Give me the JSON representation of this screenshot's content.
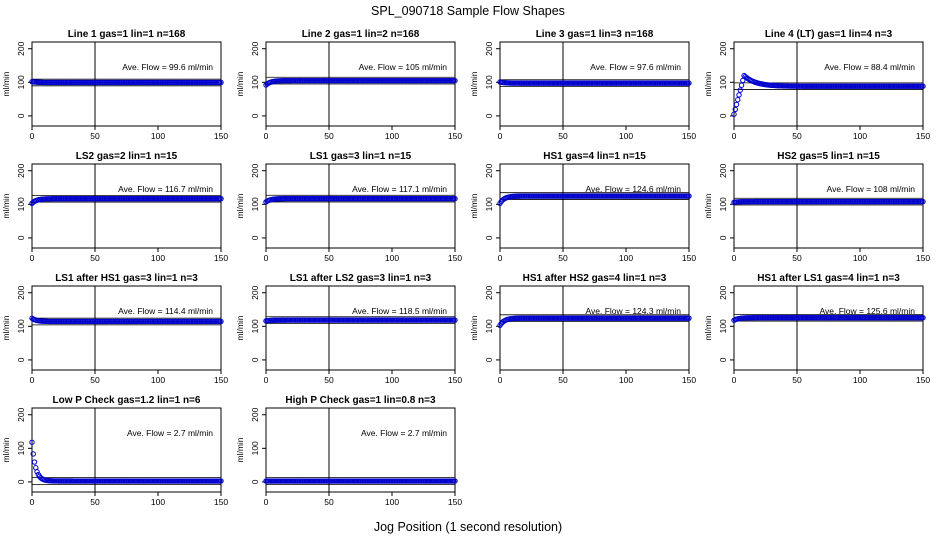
{
  "figure": {
    "title": "SPL_090718  Sample Flow Shapes",
    "xlabel": "Jog Position (1 second resolution)"
  },
  "chart_data": [
    {
      "type": "scatter",
      "title": "Line 1 gas=1 lin=1 n=168",
      "ylabel": "ml/min",
      "annotation": "Ave. Flow =  99.6  ml/min",
      "mean": 99.6,
      "xlim": [
        0,
        150
      ],
      "ylim": [
        -30,
        220
      ],
      "xticks": [
        0,
        50,
        100,
        150
      ],
      "yticks": [
        0,
        100,
        200
      ],
      "vline_x": 50,
      "shape": {
        "start": 102,
        "end": 99.6,
        "peak": null
      }
    },
    {
      "type": "scatter",
      "title": "Line 2 gas=1 lin=2 n=168",
      "ylabel": "ml/min",
      "annotation": "Ave. Flow =  105  ml/min",
      "mean": 105,
      "xlim": [
        0,
        150
      ],
      "ylim": [
        -30,
        220
      ],
      "xticks": [
        0,
        50,
        100,
        150
      ],
      "yticks": [
        0,
        100,
        200
      ],
      "vline_x": 50,
      "shape": {
        "start": 92,
        "end": 105,
        "peak": null
      }
    },
    {
      "type": "scatter",
      "title": "Line 3 gas=1 lin=3 n=168",
      "ylabel": "ml/min",
      "annotation": "Ave. Flow =  97.6  ml/min",
      "mean": 97.6,
      "xlim": [
        0,
        150
      ],
      "ylim": [
        -30,
        220
      ],
      "xticks": [
        0,
        50,
        100,
        150
      ],
      "yticks": [
        0,
        100,
        200
      ],
      "vline_x": 50,
      "shape": {
        "start": 101,
        "end": 97.6,
        "peak": null
      }
    },
    {
      "type": "scatter",
      "title": "Line 4 (LT) gas=1 lin=4 n=3",
      "ylabel": "ml/min",
      "annotation": "Ave. Flow =  88.4  ml/min",
      "mean": 88.4,
      "xlim": [
        0,
        150
      ],
      "ylim": [
        -30,
        220
      ],
      "xticks": [
        0,
        50,
        100,
        150
      ],
      "yticks": [
        0,
        100,
        200
      ],
      "vline_x": 50,
      "shape": {
        "start": 5,
        "end": 88.4,
        "peak": 120
      }
    },
    {
      "type": "scatter",
      "title": "LS2 gas=2 lin=1 n=15",
      "ylabel": "ml/min",
      "annotation": "Ave. Flow =  116.7  ml/min",
      "mean": 116.7,
      "xlim": [
        0,
        150
      ],
      "ylim": [
        -30,
        220
      ],
      "xticks": [
        0,
        50,
        100,
        150
      ],
      "yticks": [
        0,
        100,
        200
      ],
      "vline_x": 50,
      "shape": {
        "start": 103,
        "end": 116.7,
        "peak": null
      }
    },
    {
      "type": "scatter",
      "title": "LS1 gas=3 lin=1 n=15",
      "ylabel": "ml/min",
      "annotation": "Ave. Flow =  117.1  ml/min",
      "mean": 117.1,
      "xlim": [
        0,
        150
      ],
      "ylim": [
        -30,
        220
      ],
      "xticks": [
        0,
        50,
        100,
        150
      ],
      "yticks": [
        0,
        100,
        200
      ],
      "vline_x": 50,
      "shape": {
        "start": 107,
        "end": 117.1,
        "peak": null
      }
    },
    {
      "type": "scatter",
      "title": "HS1 gas=4 lin=1 n=15",
      "ylabel": "ml/min",
      "annotation": "Ave. Flow =  124.6  ml/min",
      "mean": 124.6,
      "xlim": [
        0,
        150
      ],
      "ylim": [
        -30,
        220
      ],
      "xticks": [
        0,
        50,
        100,
        150
      ],
      "yticks": [
        0,
        100,
        200
      ],
      "vline_x": 50,
      "shape": {
        "start": 103,
        "end": 124.6,
        "peak": null
      }
    },
    {
      "type": "scatter",
      "title": "HS2 gas=5 lin=1 n=15",
      "ylabel": "ml/min",
      "annotation": "Ave. Flow =  108  ml/min",
      "mean": 108,
      "xlim": [
        0,
        150
      ],
      "ylim": [
        -30,
        220
      ],
      "xticks": [
        0,
        50,
        100,
        150
      ],
      "yticks": [
        0,
        100,
        200
      ],
      "vline_x": 50,
      "shape": {
        "start": 106,
        "end": 108,
        "peak": null
      }
    },
    {
      "type": "scatter",
      "title": "LS1 after HS1 gas=3 lin=1 n=3",
      "ylabel": "ml/min",
      "annotation": "Ave. Flow =  114.4  ml/min",
      "mean": 114.4,
      "xlim": [
        0,
        150
      ],
      "ylim": [
        -30,
        220
      ],
      "xticks": [
        0,
        50,
        100,
        150
      ],
      "yticks": [
        0,
        100,
        200
      ],
      "vline_x": 50,
      "shape": {
        "start": 124,
        "end": 114.4,
        "peak": null
      }
    },
    {
      "type": "scatter",
      "title": "LS1 after LS2 gas=3 lin=1 n=3",
      "ylabel": "ml/min",
      "annotation": "Ave. Flow =  118.5  ml/min",
      "mean": 118.5,
      "xlim": [
        0,
        150
      ],
      "ylim": [
        -30,
        220
      ],
      "xticks": [
        0,
        50,
        100,
        150
      ],
      "yticks": [
        0,
        100,
        200
      ],
      "vline_x": 50,
      "shape": {
        "start": 116,
        "end": 118.5,
        "peak": null
      }
    },
    {
      "type": "scatter",
      "title": "HS1 after HS2 gas=4 lin=1 n=3",
      "ylabel": "ml/min",
      "annotation": "Ave. Flow =  124.3  ml/min",
      "mean": 124.3,
      "xlim": [
        0,
        150
      ],
      "ylim": [
        -30,
        220
      ],
      "xticks": [
        0,
        50,
        100,
        150
      ],
      "yticks": [
        0,
        100,
        200
      ],
      "vline_x": 50,
      "shape": {
        "start": 103,
        "end": 124.3,
        "peak": null
      }
    },
    {
      "type": "scatter",
      "title": "HS1 after LS1 gas=4 lin=1 n=3",
      "ylabel": "ml/min",
      "annotation": "Ave. Flow =  125.6  ml/min",
      "mean": 125.6,
      "xlim": [
        0,
        150
      ],
      "ylim": [
        -30,
        220
      ],
      "xticks": [
        0,
        50,
        100,
        150
      ],
      "yticks": [
        0,
        100,
        200
      ],
      "vline_x": 50,
      "shape": {
        "start": 118,
        "end": 125.6,
        "peak": null
      }
    },
    {
      "type": "scatter",
      "title": "Low P Check gas=1.2 lin=1 n=6",
      "ylabel": "ml/min",
      "annotation": "Ave. Flow =  2.7  ml/min",
      "mean": 2.7,
      "xlim": [
        0,
        150
      ],
      "ylim": [
        -30,
        220
      ],
      "xticks": [
        0,
        50,
        100,
        150
      ],
      "yticks": [
        0,
        100,
        200
      ],
      "vline_x": 50,
      "shape": {
        "start": 118,
        "end": 2.7,
        "peak": null
      }
    },
    {
      "type": "scatter",
      "title": "High P Check gas=1 lin=0.8 n=3",
      "ylabel": "ml/min",
      "annotation": "Ave. Flow =  2.7  ml/min",
      "mean": 2.7,
      "xlim": [
        0,
        150
      ],
      "ylim": [
        -30,
        220
      ],
      "xticks": [
        0,
        50,
        100,
        150
      ],
      "yticks": [
        0,
        100,
        200
      ],
      "vline_x": 50,
      "shape": {
        "start": 2.7,
        "end": 2.7,
        "peak": null
      }
    }
  ],
  "colors": {
    "points": "#0000cc",
    "axes": "#000000"
  }
}
